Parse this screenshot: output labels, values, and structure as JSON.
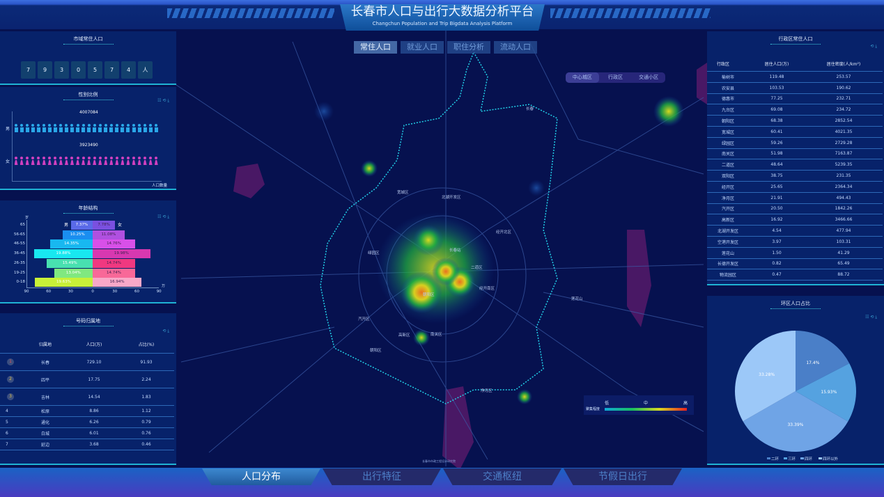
{
  "header": {
    "title": "长春市人口与出行大数据分析平台",
    "subtitle": "Changchun Population and Trip Bigdata Analysis Platform"
  },
  "map_tabs": [
    {
      "label": "常住人口",
      "active": true
    },
    {
      "label": "就业人口"
    },
    {
      "label": "职住分析"
    },
    {
      "label": "流动人口"
    }
  ],
  "map_segments": [
    {
      "label": "中心城区",
      "active": true
    },
    {
      "label": "行政区"
    },
    {
      "label": "交通小区"
    }
  ],
  "map_labels": [
    "宽城区",
    "北湖开发区",
    "经开北区",
    "绿园区",
    "长春站",
    "二道区",
    "经开南区",
    "朝阳区",
    "汽开区",
    "高新区",
    "南关区",
    "朝阳区",
    "净月区",
    "莲花山",
    "长春"
  ],
  "heat_legend": {
    "label": "聚集程度",
    "low": "低",
    "mid": "中",
    "high": "高",
    "colors": [
      "#10a8d8",
      "#18c060",
      "#d8d820",
      "#e82020"
    ]
  },
  "city_population": {
    "title": "市域常住人口",
    "digits": [
      "7",
      "9",
      "3",
      "0",
      "5",
      "7",
      "4"
    ],
    "unit": "人"
  },
  "gender": {
    "title": "性别比例",
    "tools": "☷ ⟲ ⤓",
    "male_label": "男",
    "female_label": "女",
    "male_value": "4007084",
    "female_value": "3923490",
    "axis_label": "人口数量",
    "male_color": "#2aa7e8",
    "female_color": "#d040c0"
  },
  "age": {
    "title": "年龄结构",
    "tools": "☷ ⟲ ⤓",
    "y_unit": "岁",
    "x_unit": "万",
    "male_label": "男",
    "female_label": "女",
    "x_ticks": [
      "90",
      "60",
      "30",
      "0",
      "30",
      "60",
      "90"
    ],
    "groups": [
      {
        "label": "65",
        "male": "7.37%",
        "female": "7.78%",
        "male_color": "#5a6ae8",
        "female_color": "#7a50e0"
      },
      {
        "label": "56-65",
        "male": "10.25%",
        "female": "11.08%",
        "male_color": "#1a8ef0",
        "female_color": "#b050e0"
      },
      {
        "label": "46-55",
        "male": "14.35%",
        "female": "14.76%",
        "male_color": "#18b8f0",
        "female_color": "#d850e8"
      },
      {
        "label": "36-45",
        "male": "19.88%",
        "female": "19.98%",
        "male_color": "#18e8f0",
        "female_color": "#d838b0"
      },
      {
        "label": "26-35",
        "male": "15.49%",
        "female": "14.74%",
        "male_color": "#48e0b0",
        "female_color": "#f03880"
      },
      {
        "label": "19-25",
        "male": "13.04%",
        "female": "14.74%",
        "male_color": "#80e880",
        "female_color": "#f86898"
      },
      {
        "label": "0-18",
        "male": "19.63%",
        "female": "16.94%",
        "male_color": "#c8f038",
        "female_color": "#f8a8c8"
      }
    ]
  },
  "origin": {
    "title": "号码归属地",
    "tools": "⟲ ⤓",
    "headers": [
      "归属地",
      "人口(万)",
      "占比(%)"
    ],
    "rows": [
      [
        "1",
        "长春",
        "729.10",
        "91.93"
      ],
      [
        "2",
        "四平",
        "17.75",
        "2.24"
      ],
      [
        "3",
        "吉林",
        "14.54",
        "1.83"
      ],
      [
        "4",
        "松原",
        "8.86",
        "1.12"
      ],
      [
        "5",
        "通化",
        "6.26",
        "0.79"
      ],
      [
        "6",
        "白城",
        "6.01",
        "0.76"
      ],
      [
        "7",
        "延边",
        "3.68",
        "0.46"
      ]
    ]
  },
  "district": {
    "title": "行政区常住人口",
    "tools": "⟲ ⤓",
    "headers": [
      "行政区",
      "居住人口(万)",
      "居住密度(人/km²)"
    ],
    "sort_hint": "伪自",
    "rows": [
      [
        "榆树市",
        "119.48",
        "253.57"
      ],
      [
        "农安县",
        "103.53",
        "190.62"
      ],
      [
        "德惠市",
        "77.25",
        "232.71"
      ],
      [
        "九台区",
        "69.08",
        "234.72"
      ],
      [
        "朝阳区",
        "68.38",
        "2852.54"
      ],
      [
        "宽城区",
        "60.41",
        "4021.35"
      ],
      [
        "绿园区",
        "59.26",
        "2729.28"
      ],
      [
        "南关区",
        "51.98",
        "7163.87"
      ],
      [
        "二道区",
        "48.64",
        "5239.35"
      ],
      [
        "双阳区",
        "38.75",
        "231.35"
      ],
      [
        "经开区",
        "25.65",
        "2364.34"
      ],
      [
        "净月区",
        "21.91",
        "494.43"
      ],
      [
        "汽开区",
        "20.50",
        "1842.26"
      ],
      [
        "高新区",
        "16.92",
        "3466.66"
      ],
      [
        "北湖开发区",
        "4.54",
        "477.94"
      ],
      [
        "空港开发区",
        "3.97",
        "103.31"
      ],
      [
        "莲花山",
        "1.50",
        "41.29"
      ],
      [
        "长德开发区",
        "0.82",
        "65.49"
      ],
      [
        "物流园区",
        "0.47",
        "88.72"
      ]
    ]
  },
  "ring": {
    "title": "环区人口占比",
    "tools": "☷ ⟲ ⤓"
  },
  "chart_data": {
    "type": "pie",
    "slices": [
      {
        "name": "二环",
        "value": 17.4,
        "label": "17.4%",
        "color": "#4a7fc8"
      },
      {
        "name": "三环",
        "value": 15.93,
        "label": "15.93%",
        "color": "#55a2e0"
      },
      {
        "name": "四环",
        "value": 33.39,
        "label": "33.39%",
        "color": "#6fa4e6"
      },
      {
        "name": "四环以外",
        "value": 33.28,
        "label": "33.28%",
        "color": "#9cc8f8"
      }
    ],
    "legend": "bottom"
  },
  "bottom_nav": [
    {
      "label": "人口分布",
      "active": true
    },
    {
      "label": "出行特征"
    },
    {
      "label": "交通枢纽"
    },
    {
      "label": "节假日出行"
    }
  ],
  "footer_logo": "长春市市政工程设计研究院"
}
